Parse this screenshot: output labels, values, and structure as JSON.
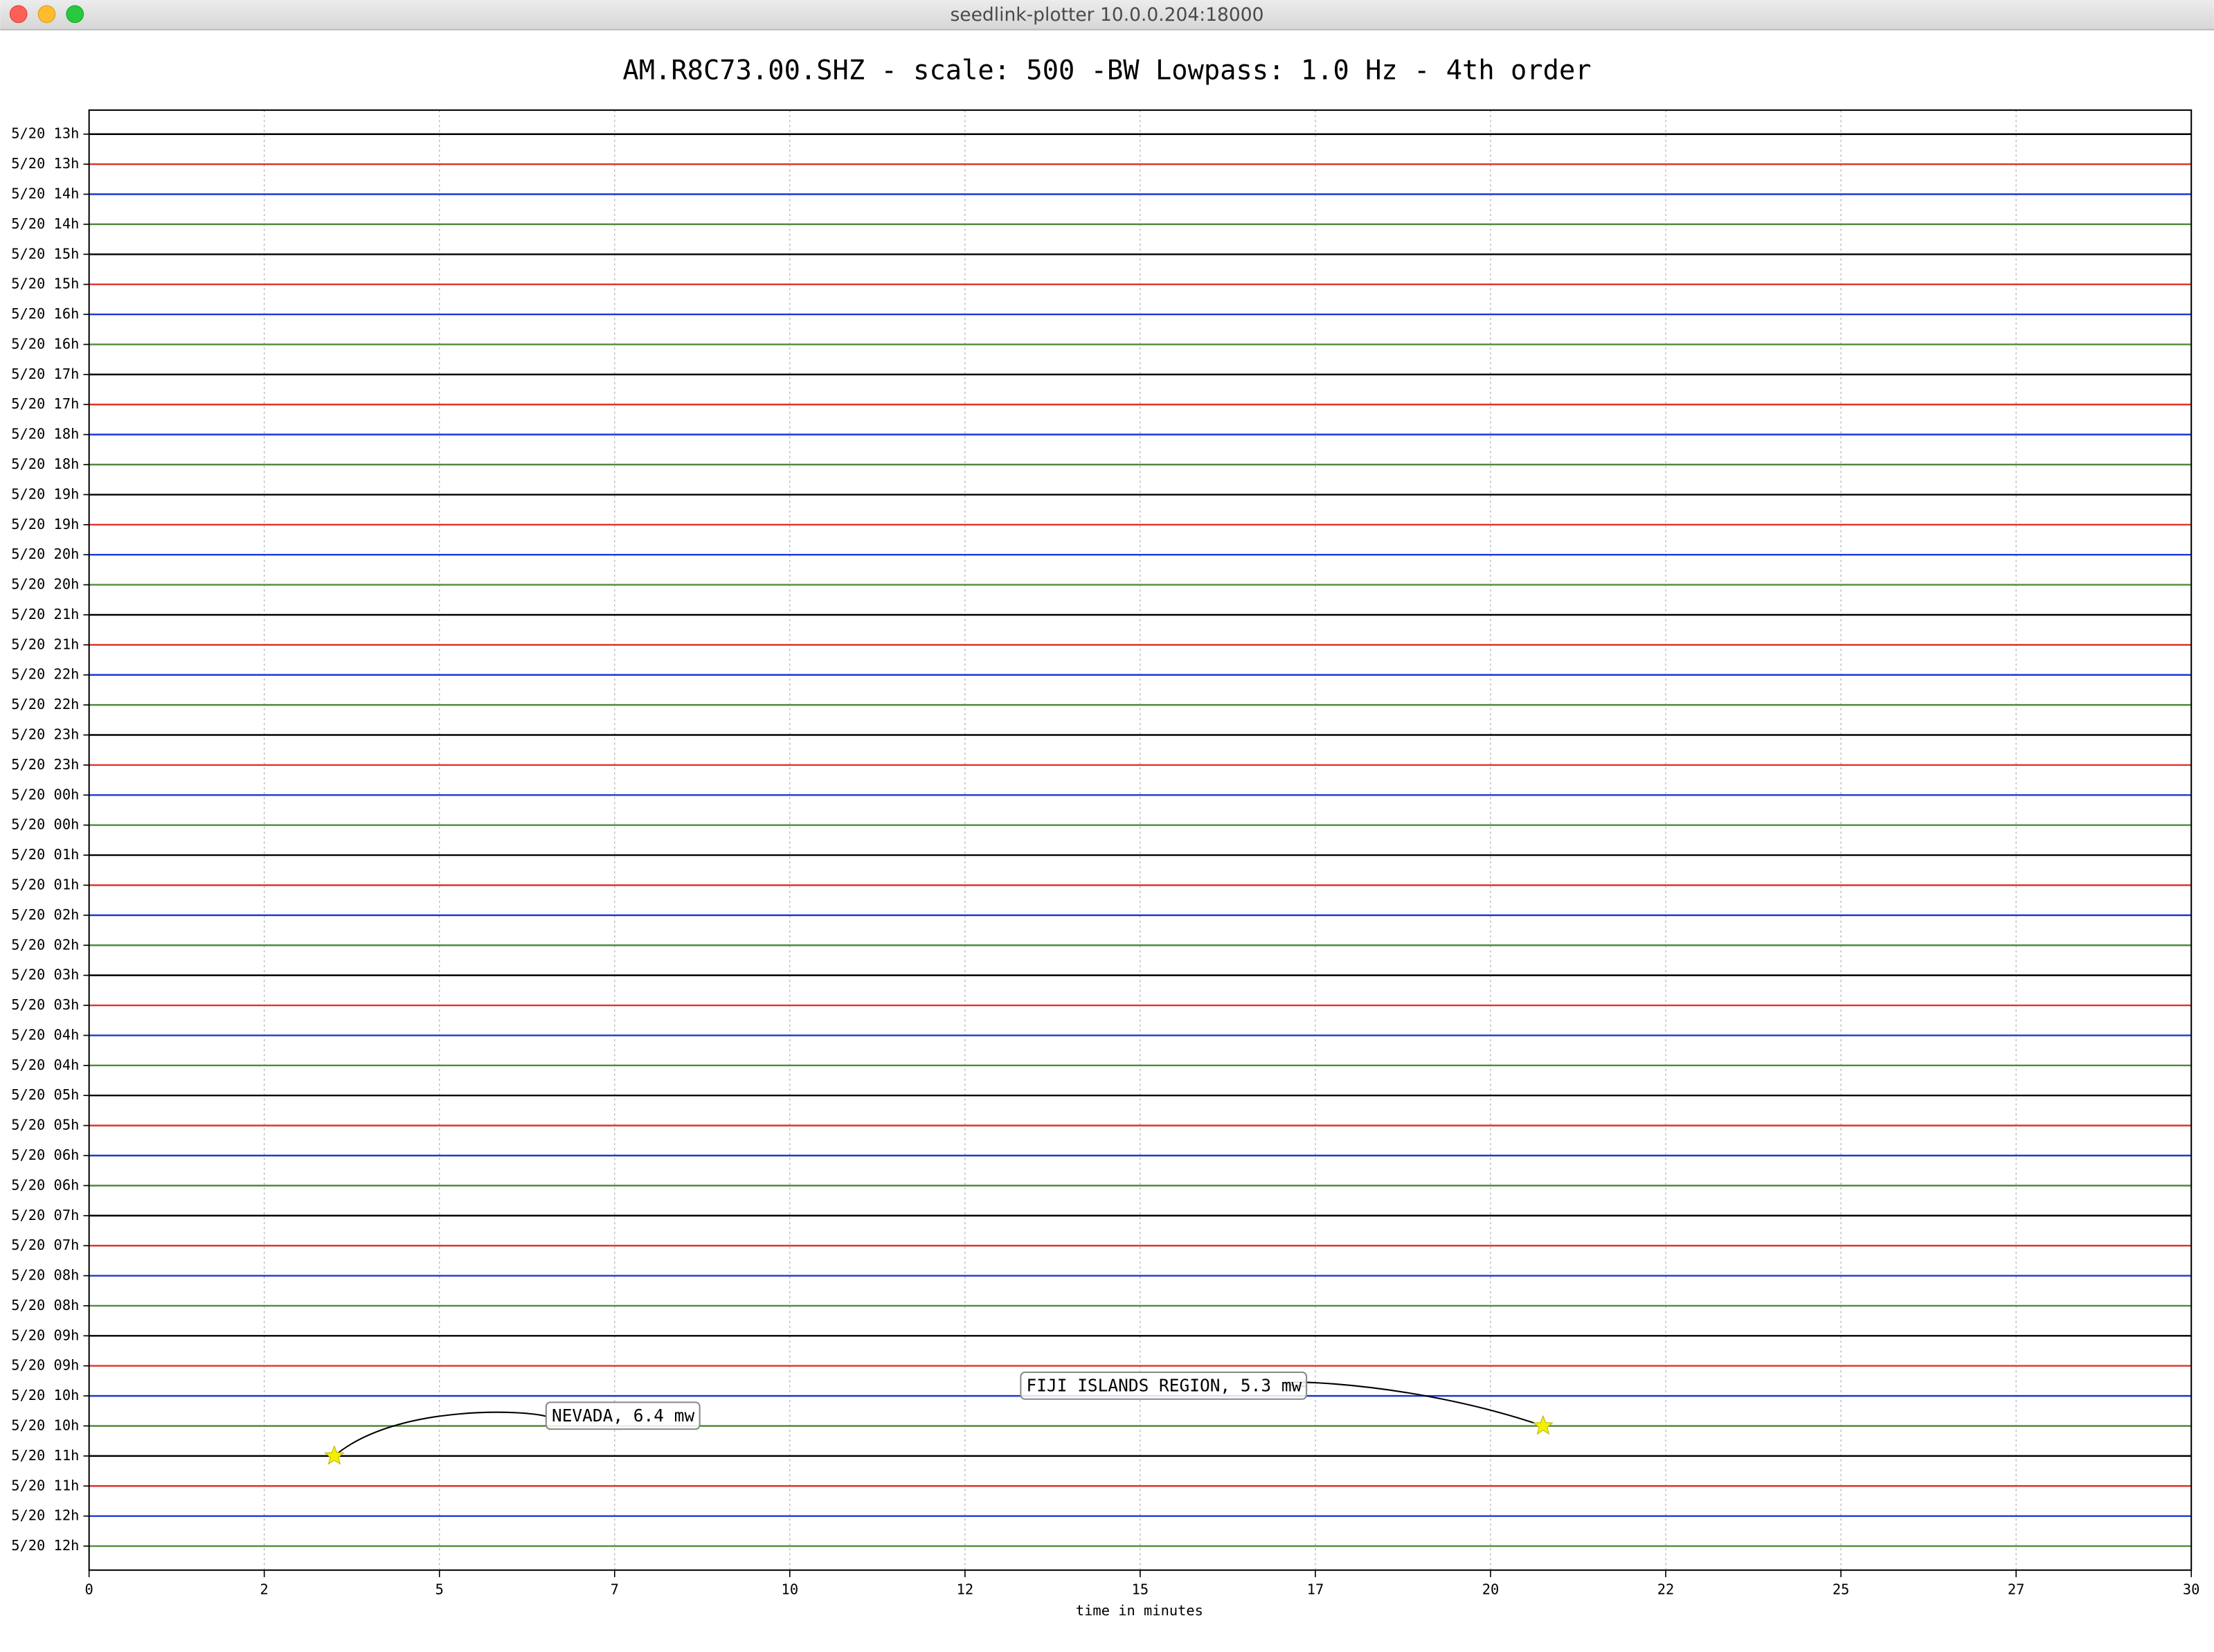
{
  "window": {
    "title": "seedlink-plotter 10.0.0.204:18000"
  },
  "chart_data": {
    "type": "seismogram",
    "title": "AM.R8C73.00.SHZ - scale: 500 -BW Lowpass: 1.0 Hz - 4th order",
    "xlabel": "time in minutes",
    "xlim": [
      0,
      30
    ],
    "xticks": [
      0,
      {
        "value": 2.5,
        "label": "2"
      },
      5,
      {
        "value": 7.5,
        "label": "7"
      },
      10,
      {
        "value": 12.5,
        "label": "12"
      },
      15,
      {
        "value": 17.5,
        "label": "17"
      },
      20,
      {
        "value": 22.5,
        "label": "22"
      },
      25,
      {
        "value": 27.5,
        "label": "27"
      },
      30
    ],
    "grid": true,
    "colors": [
      "#000000",
      "#e0332a",
      "#1c37d8",
      "#4f8a3c"
    ],
    "categories": [
      "5/20 13h",
      "5/20 13h",
      "5/20 14h",
      "5/20 14h",
      "5/20 15h",
      "5/20 15h",
      "5/20 16h",
      "5/20 16h",
      "5/20 17h",
      "5/20 17h",
      "5/20 18h",
      "5/20 18h",
      "5/20 19h",
      "5/20 19h",
      "5/20 20h",
      "5/20 20h",
      "5/20 21h",
      "5/20 21h",
      "5/20 22h",
      "5/20 22h",
      "5/20 23h",
      "5/20 23h",
      "5/20 00h",
      "5/20 00h",
      "5/20 01h",
      "5/20 01h",
      "5/20 02h",
      "5/20 02h",
      "5/20 03h",
      "5/20 03h",
      "5/20 04h",
      "5/20 04h",
      "5/20 05h",
      "5/20 05h",
      "5/20 06h",
      "5/20 06h",
      "5/20 07h",
      "5/20 07h",
      "5/20 08h",
      "5/20 08h",
      "5/20 09h",
      "5/20 09h",
      "5/20 10h",
      "5/20 10h",
      "5/20 11h",
      "5/20 11h",
      "5/20 12h",
      "5/20 12h"
    ],
    "events": [
      {
        "label": "NEVADA, 6.4 mw",
        "x": 3.5,
        "row": 44
      },
      {
        "label": "FIJI ISLANDS REGION, 5.3 mw",
        "x": 20.75,
        "row": 43
      }
    ]
  }
}
